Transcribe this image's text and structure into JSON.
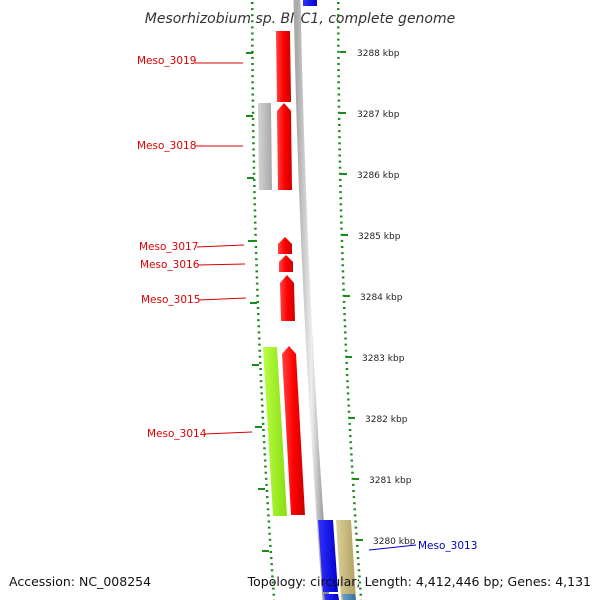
{
  "title": "Mesorhizobium sp. BNC1, complete genome",
  "footer": {
    "accession": "Accession: NC_008254",
    "topology": "Topology: circular; Length: 4,412,446 bp; Genes: 4,131"
  },
  "ticks": [
    "3288 kbp",
    "3287 kbp",
    "3286 kbp",
    "3285 kbp",
    "3284 kbp",
    "3283 kbp",
    "3282 kbp",
    "3281 kbp",
    "3280 kbp"
  ],
  "genes": [
    {
      "label": "Meso_3019",
      "color": "#dd0000"
    },
    {
      "label": "Meso_3018",
      "color": "#dd0000"
    },
    {
      "label": "Meso_3017",
      "color": "#dd0000"
    },
    {
      "label": "Meso_3016",
      "color": "#dd0000"
    },
    {
      "label": "Meso_3015",
      "color": "#dd0000"
    },
    {
      "label": "Meso_3014",
      "color": "#dd0000"
    },
    {
      "label": "Meso_3013",
      "color": "#0000cc"
    }
  ],
  "colors": {
    "forward_gene": "#ff0000",
    "reverse_gene": "#0000ff",
    "backbone": "#888888",
    "tick_marks": "#1a8a1a",
    "cog_gray": "#bbbbbb",
    "cog_lime": "#99ee22",
    "cog_tan": "#c8b87a",
    "cog_steel": "#4a86b8"
  }
}
